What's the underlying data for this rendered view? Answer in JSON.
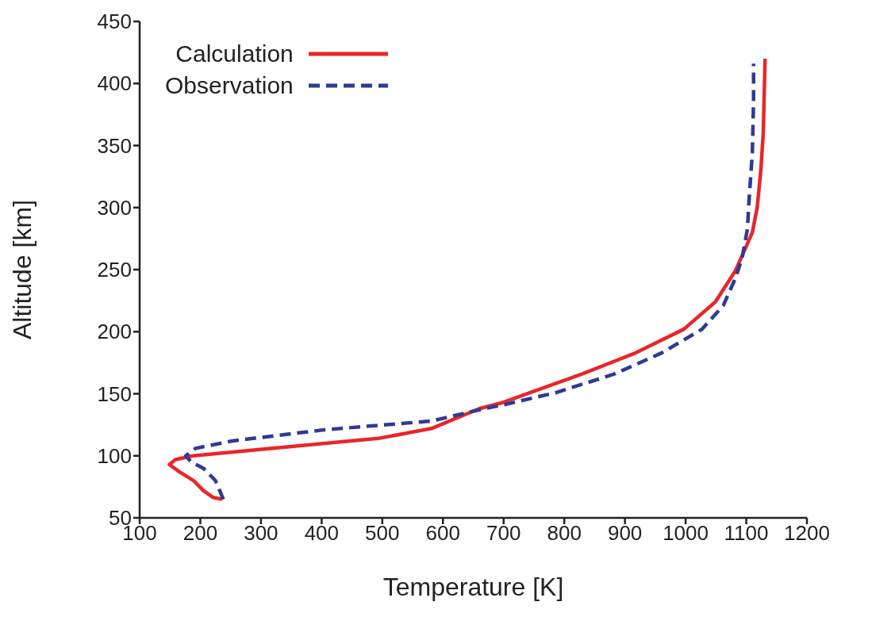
{
  "chart_data": {
    "type": "line",
    "xlabel": "Temperature [K]",
    "ylabel": "Altitude [km]",
    "xlim": [
      100,
      1200
    ],
    "xticks": [
      100,
      200,
      300,
      400,
      500,
      600,
      700,
      800,
      900,
      1000,
      1100,
      1200
    ],
    "ylim": [
      50,
      450
    ],
    "yticks": [
      50,
      100,
      150,
      200,
      250,
      300,
      350,
      400,
      450
    ],
    "legend": "top left",
    "grid": false,
    "marker": "none",
    "series": [
      {
        "name": "Calculation",
        "color": "#e8262b",
        "line_style": "solid",
        "x": [
          236,
          221,
          205,
          189,
          166,
          149,
          159,
          188,
          319,
          493,
          581,
          660,
          699,
          830,
          918,
          997,
          1049,
          1082,
          1110,
          1118,
          1124,
          1128,
          1131
        ],
        "values": [
          65,
          66.5,
          72,
          80,
          87,
          93,
          97,
          100,
          106,
          114,
          122,
          138,
          143,
          166,
          183,
          202,
          224,
          249,
          280,
          300,
          330,
          360,
          420
        ]
      },
      {
        "name": "Observation",
        "color": "#2e3a94",
        "line_style": "dashed",
        "x": [
          238,
          225,
          205,
          185,
          176,
          192,
          253,
          405,
          581,
          668,
          699,
          787,
          883,
          961,
          1027,
          1062,
          1082,
          1093,
          1102,
          1104,
          1110,
          1112,
          1112
        ],
        "values": [
          65,
          80,
          90,
          95,
          100,
          106,
          112,
          121,
          128,
          138,
          141,
          151,
          166,
          183,
          202,
          221,
          243,
          259,
          283,
          302,
          344,
          386,
          416
        ]
      }
    ]
  }
}
